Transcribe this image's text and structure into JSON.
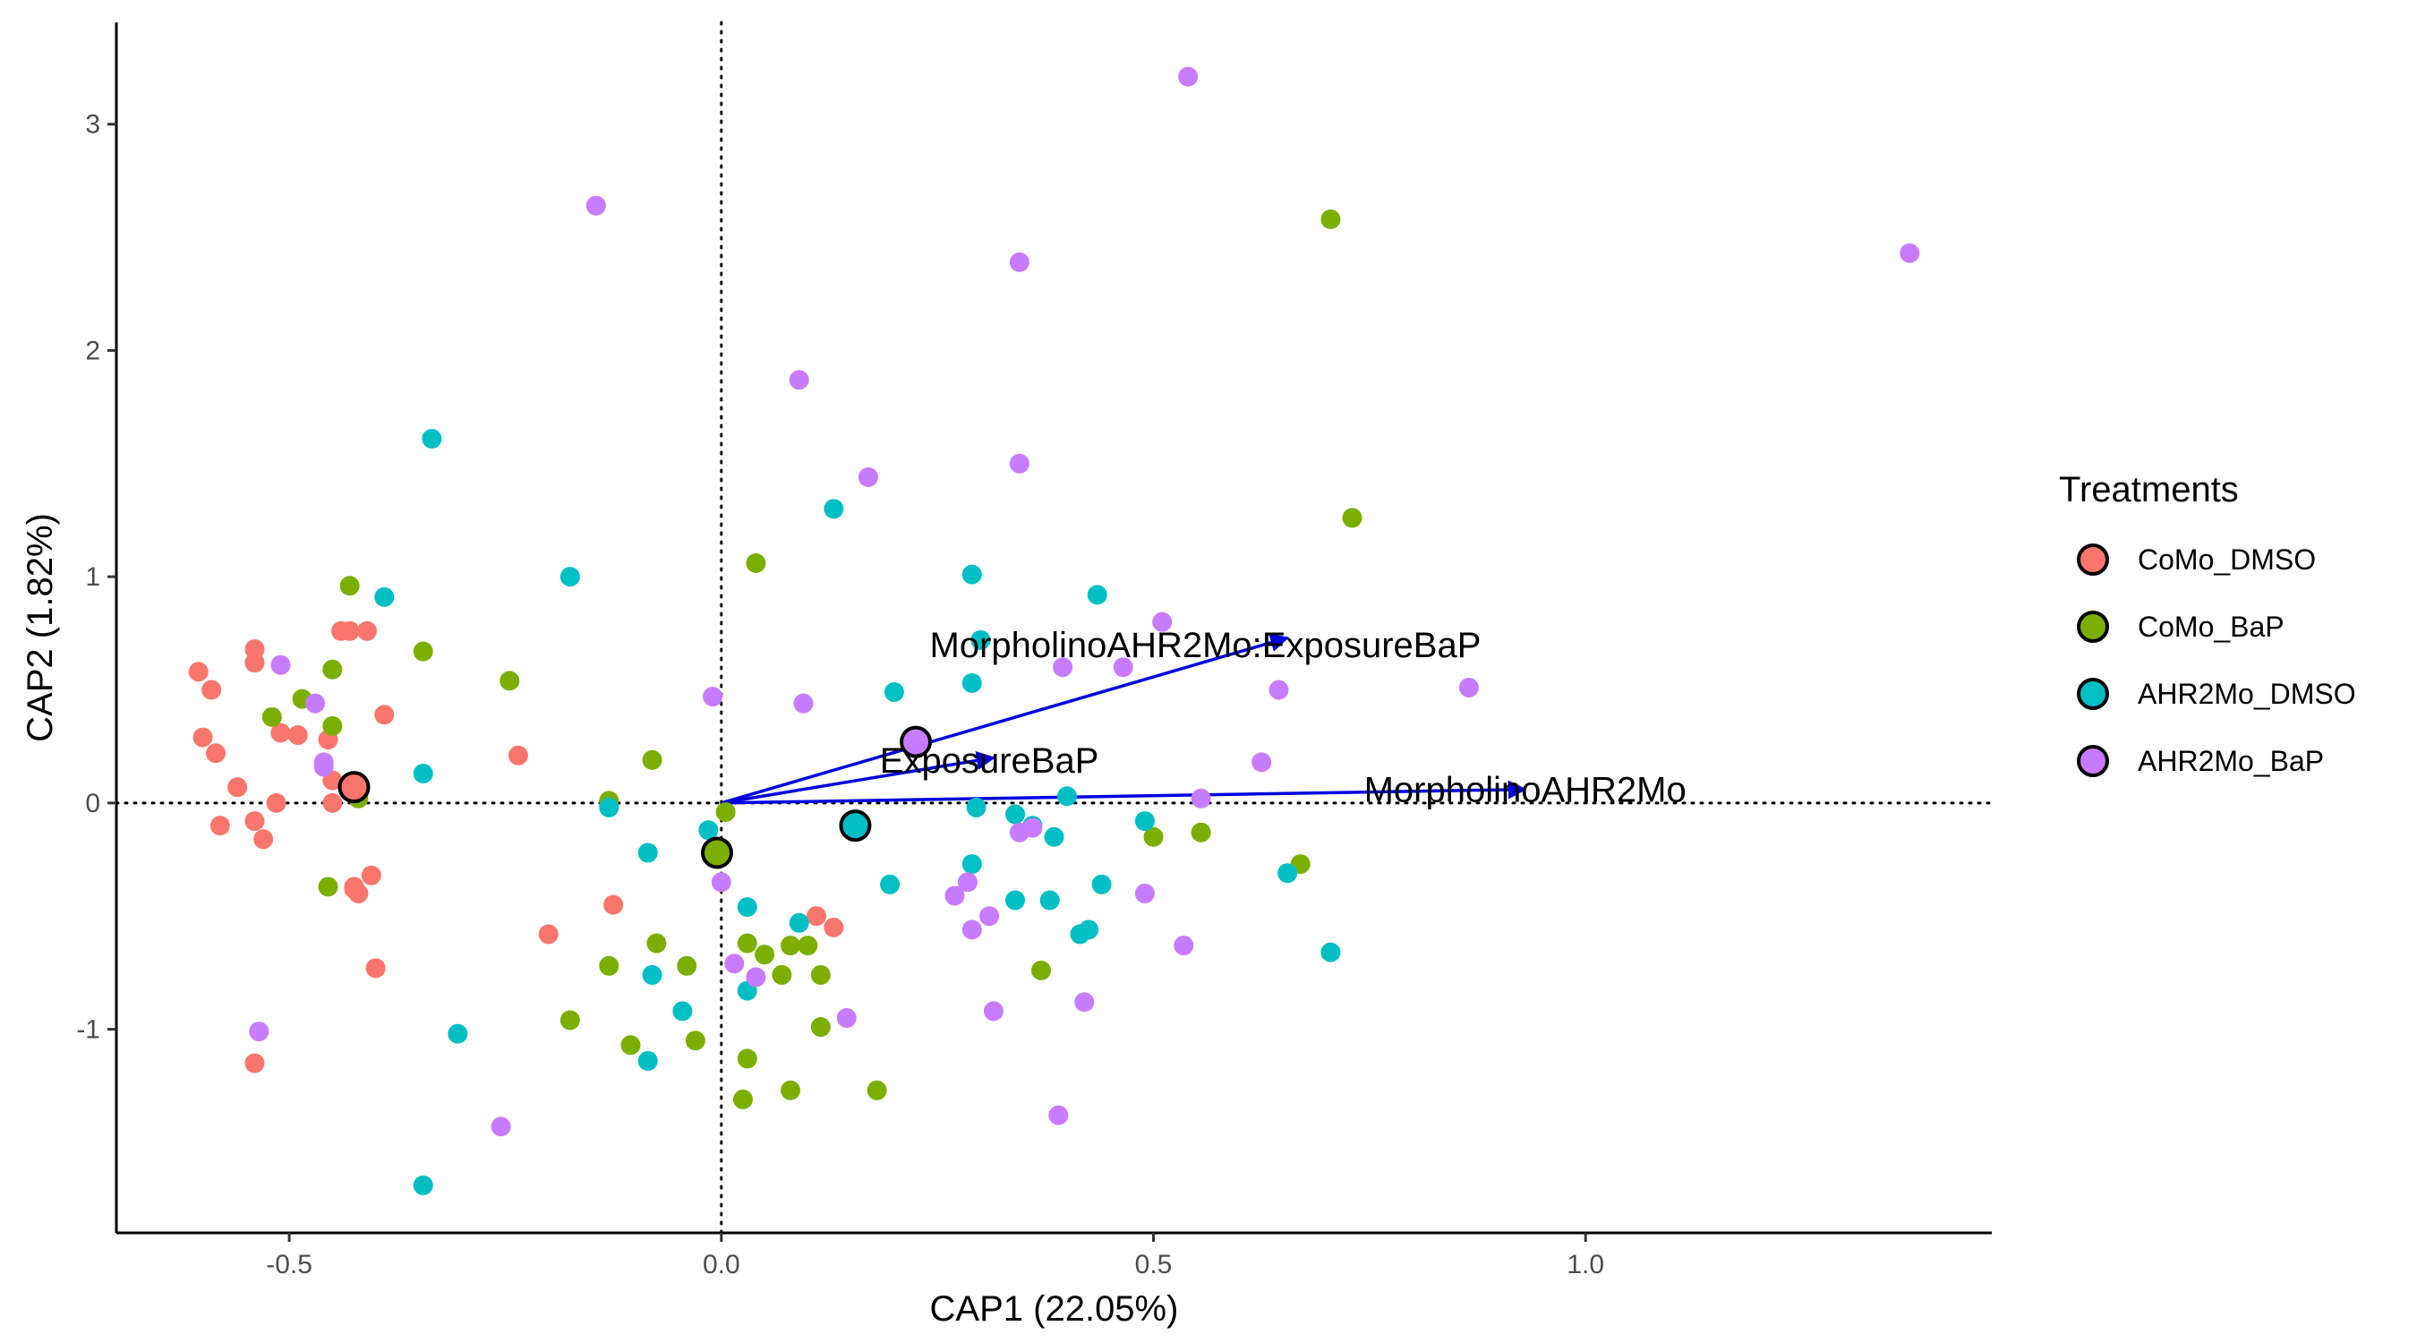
{
  "chart_data": {
    "type": "scatter",
    "title": "",
    "xlabel": "CAP1 (22.05%)",
    "ylabel": "CAP2 (1.82%)",
    "xlim": [
      -0.7,
      1.47
    ],
    "ylim": [
      -1.9,
      3.45
    ],
    "grid": false,
    "x_ticks": [
      -0.5,
      0.0,
      0.5,
      1.0
    ],
    "x_tick_labels": [
      "-0.5",
      "0.0",
      "0.5",
      "1.0"
    ],
    "y_ticks": [
      -1,
      0,
      1,
      2,
      3
    ],
    "y_tick_labels": [
      "-1",
      "0",
      "1",
      "2",
      "3"
    ],
    "reference_lines": [
      {
        "orientation": "vertical",
        "value": 0
      },
      {
        "orientation": "horizontal",
        "value": 0
      }
    ],
    "legend": {
      "title": "Treatments",
      "position": "right"
    },
    "series": [
      {
        "name": "CoMo_DMSO",
        "color": "#F8766D",
        "points": [
          [
            -0.605,
            0.58
          ],
          [
            -0.59,
            0.5
          ],
          [
            -0.6,
            0.29
          ],
          [
            -0.585,
            0.22
          ],
          [
            -0.58,
            -0.1
          ],
          [
            -0.56,
            0.07
          ],
          [
            -0.54,
            0.68
          ],
          [
            -0.54,
            0.62
          ],
          [
            -0.54,
            -0.08
          ],
          [
            -0.53,
            -0.16
          ],
          [
            -0.515,
            0.0
          ],
          [
            -0.51,
            0.31
          ],
          [
            -0.49,
            0.3
          ],
          [
            -0.455,
            0.28
          ],
          [
            -0.45,
            0.0
          ],
          [
            -0.45,
            0.1
          ],
          [
            -0.44,
            0.76
          ],
          [
            -0.43,
            0.76
          ],
          [
            -0.41,
            0.76
          ],
          [
            -0.39,
            0.39
          ],
          [
            -0.425,
            -0.37
          ],
          [
            -0.425,
            -0.38
          ],
          [
            -0.42,
            -0.4
          ],
          [
            -0.405,
            -0.32
          ],
          [
            -0.4,
            -0.73
          ],
          [
            -0.235,
            0.21
          ],
          [
            -0.2,
            -0.58
          ],
          [
            -0.125,
            -0.45
          ],
          [
            0.11,
            -0.5
          ],
          [
            0.13,
            -0.55
          ],
          [
            -0.54,
            -1.15
          ]
        ],
        "centroid": [
          -0.425,
          0.07
        ]
      },
      {
        "name": "CoMo_BaP",
        "color": "#7CAE00",
        "points": [
          [
            -0.52,
            0.38
          ],
          [
            -0.485,
            0.46
          ],
          [
            -0.45,
            0.59
          ],
          [
            -0.45,
            0.34
          ],
          [
            -0.43,
            0.96
          ],
          [
            -0.42,
            0.02
          ],
          [
            -0.455,
            -0.37
          ],
          [
            -0.345,
            0.67
          ],
          [
            -0.245,
            0.54
          ],
          [
            -0.13,
            0.01
          ],
          [
            -0.08,
            0.19
          ],
          [
            -0.13,
            -0.72
          ],
          [
            -0.075,
            -0.62
          ],
          [
            -0.04,
            -0.72
          ],
          [
            -0.175,
            -0.96
          ],
          [
            -0.105,
            -1.07
          ],
          [
            -0.03,
            -1.05
          ],
          [
            0.005,
            -0.04
          ],
          [
            0.04,
            1.06
          ],
          [
            0.03,
            -0.62
          ],
          [
            0.05,
            -0.67
          ],
          [
            0.07,
            -0.76
          ],
          [
            0.08,
            -0.63
          ],
          [
            0.1,
            -0.63
          ],
          [
            0.115,
            -0.76
          ],
          [
            0.115,
            -0.99
          ],
          [
            0.03,
            -1.13
          ],
          [
            0.025,
            -1.31
          ],
          [
            0.08,
            -1.27
          ],
          [
            0.18,
            -1.27
          ],
          [
            0.37,
            -0.74
          ],
          [
            0.5,
            -0.15
          ],
          [
            0.555,
            -0.13
          ],
          [
            0.67,
            -0.27
          ],
          [
            0.705,
            2.58
          ],
          [
            0.73,
            1.26
          ]
        ],
        "centroid": [
          -0.005,
          -0.22
        ]
      },
      {
        "name": "AHR2Mo_DMSO",
        "color": "#00BFC4",
        "points": [
          [
            -0.39,
            0.91
          ],
          [
            -0.345,
            0.13
          ],
          [
            -0.335,
            1.61
          ],
          [
            -0.305,
            -1.02
          ],
          [
            -0.345,
            -1.69
          ],
          [
            -0.175,
            1.0
          ],
          [
            -0.13,
            -0.02
          ],
          [
            -0.085,
            -0.22
          ],
          [
            -0.08,
            -0.76
          ],
          [
            -0.045,
            -0.92
          ],
          [
            -0.085,
            -1.14
          ],
          [
            -0.015,
            -0.12
          ],
          [
            0.03,
            -0.46
          ],
          [
            0.03,
            -0.83
          ],
          [
            0.09,
            -0.53
          ],
          [
            0.13,
            1.3
          ],
          [
            0.2,
            0.49
          ],
          [
            0.195,
            -0.36
          ],
          [
            0.29,
            1.01
          ],
          [
            0.29,
            0.53
          ],
          [
            0.29,
            -0.27
          ],
          [
            0.295,
            -0.02
          ],
          [
            0.3,
            0.72
          ],
          [
            0.34,
            -0.05
          ],
          [
            0.34,
            -0.43
          ],
          [
            0.36,
            -0.1
          ],
          [
            0.38,
            -0.43
          ],
          [
            0.385,
            -0.15
          ],
          [
            0.4,
            0.03
          ],
          [
            0.415,
            -0.58
          ],
          [
            0.425,
            -0.56
          ],
          [
            0.435,
            0.92
          ],
          [
            0.44,
            -0.36
          ],
          [
            0.49,
            -0.08
          ],
          [
            0.655,
            -0.31
          ],
          [
            0.705,
            -0.66
          ]
        ],
        "centroid": [
          0.155,
          -0.1
        ]
      },
      {
        "name": "AHR2Mo_BaP",
        "color": "#C77CFF",
        "points": [
          [
            -0.51,
            0.61
          ],
          [
            -0.47,
            0.44
          ],
          [
            -0.46,
            0.16
          ],
          [
            -0.46,
            0.18
          ],
          [
            -0.535,
            -1.01
          ],
          [
            -0.255,
            -1.43
          ],
          [
            -0.145,
            2.64
          ],
          [
            -0.01,
            0.47
          ],
          [
            0.0,
            -0.35
          ],
          [
            0.015,
            -0.71
          ],
          [
            0.04,
            -0.77
          ],
          [
            0.09,
            1.87
          ],
          [
            0.095,
            0.44
          ],
          [
            0.145,
            -0.95
          ],
          [
            0.17,
            1.44
          ],
          [
            0.27,
            -0.41
          ],
          [
            0.285,
            -0.35
          ],
          [
            0.29,
            -0.56
          ],
          [
            0.31,
            -0.5
          ],
          [
            0.315,
            -0.92
          ],
          [
            0.345,
            2.39
          ],
          [
            0.345,
            1.5
          ],
          [
            0.345,
            -0.13
          ],
          [
            0.36,
            -0.11
          ],
          [
            0.395,
            0.6
          ],
          [
            0.39,
            -1.38
          ],
          [
            0.42,
            -0.88
          ],
          [
            0.465,
            0.6
          ],
          [
            0.49,
            -0.4
          ],
          [
            0.51,
            0.8
          ],
          [
            0.54,
            3.21
          ],
          [
            0.535,
            -0.63
          ],
          [
            0.555,
            0.02
          ],
          [
            0.625,
            0.18
          ],
          [
            0.645,
            0.5
          ],
          [
            0.865,
            0.51
          ],
          [
            1.375,
            2.43
          ]
        ],
        "centroid": [
          0.225,
          0.27
        ]
      }
    ],
    "arrows": [
      {
        "label": "MorpholinoAHR2Mo:ExposureBaP",
        "x": 0.655,
        "y": 0.73,
        "label_x": 0.56,
        "label_y": 0.7
      },
      {
        "label": "ExposureBaP",
        "x": 0.315,
        "y": 0.2,
        "label_x": 0.31,
        "label_y": 0.19
      },
      {
        "label": "MorpholinoAHR2Mo",
        "x": 0.93,
        "y": 0.06,
        "label_x": 0.93,
        "label_y": 0.06
      }
    ],
    "arrow_color": "#0000DD"
  }
}
